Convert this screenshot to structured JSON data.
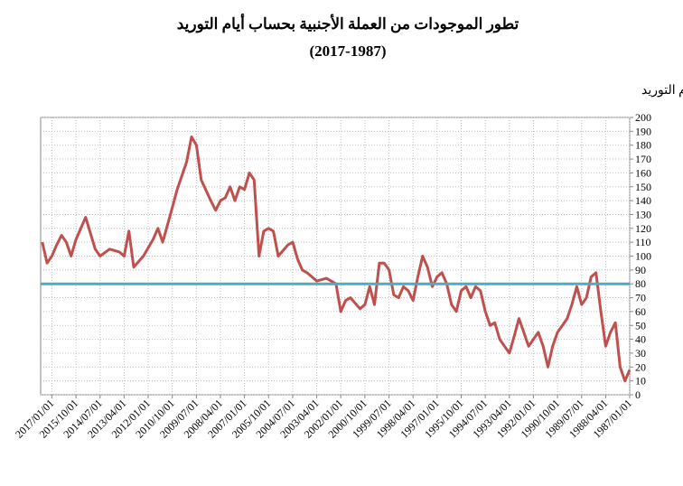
{
  "chart_data": {
    "type": "line",
    "title": "تطور الموجودات من العملة الأجنبية بحساب أيام التوريد",
    "subtitle": "(2017-1987)",
    "y_label": "أيام التوريد",
    "color": "#c0504d",
    "x_reversed": true,
    "y_axis_side": "right",
    "grid": true,
    "reference_line": {
      "value": 80,
      "color": "#4bacc6"
    },
    "xlim": [
      "1987/01/01",
      "2017/08/01"
    ],
    "xticks": [
      "2017/01/01",
      "2015/10/01",
      "2014/07/01",
      "2013/04/01",
      "2012/01/01",
      "2010/10/01",
      "2009/07/01",
      "2008/04/01",
      "2007/01/01",
      "2005/10/01",
      "2004/07/01",
      "2003/04/01",
      "2002/01/01",
      "2000/10/01",
      "1999/07/01",
      "1998/04/01",
      "1997/01/01",
      "1995/10/01",
      "1994/07/01",
      "1993/04/01",
      "1992/01/01",
      "1990/10/01",
      "1989/07/01",
      "1988/04/01",
      "1987/01/01"
    ],
    "ylim": [
      0,
      200
    ],
    "yticks": [
      0,
      10,
      20,
      30,
      40,
      50,
      60,
      70,
      80,
      90,
      100,
      110,
      120,
      130,
      140,
      150,
      160,
      170,
      180,
      190,
      200
    ],
    "x": [
      "2017/07/01",
      "2017/04/01",
      "2017/01/01",
      "2016/10/01",
      "2016/07/01",
      "2016/04/01",
      "2016/01/01",
      "2015/10/01",
      "2015/04/01",
      "2014/10/01",
      "2014/07/01",
      "2014/01/01",
      "2013/07/01",
      "2013/04/01",
      "2013/01/01",
      "2012/10/01",
      "2012/04/01",
      "2011/10/01",
      "2011/07/01",
      "2011/04/01",
      "2010/10/01",
      "2010/07/01",
      "2010/01/01",
      "2009/10/01",
      "2009/07/01",
      "2009/04/01",
      "2008/10/01",
      "2008/07/01",
      "2008/04/01",
      "2008/01/01",
      "2007/10/01",
      "2007/07/01",
      "2007/04/01",
      "2007/01/01",
      "2006/10/01",
      "2006/07/01",
      "2006/04/01",
      "2006/01/01",
      "2005/10/01",
      "2005/07/01",
      "2005/04/01",
      "2004/10/01",
      "2004/07/01",
      "2004/04/01",
      "2004/01/01",
      "2003/10/01",
      "2003/04/01",
      "2002/10/01",
      "2002/04/01",
      "2002/01/01",
      "2001/10/01",
      "2001/07/01",
      "2001/01/01",
      "2000/10/01",
      "2000/07/01",
      "2000/04/01",
      "2000/01/01",
      "1999/10/01",
      "1999/07/01",
      "1999/04/01",
      "1999/01/01",
      "1998/10/01",
      "1998/07/01",
      "1998/04/01",
      "1998/01/01",
      "1997/10/01",
      "1997/07/01",
      "1997/04/01",
      "1997/01/01",
      "1996/10/01",
      "1996/07/01",
      "1996/04/01",
      "1996/01/01",
      "1995/10/01",
      "1995/07/01",
      "1995/04/01",
      "1995/01/01",
      "1994/10/01",
      "1994/07/01",
      "1994/04/01",
      "1994/01/01",
      "1993/10/01",
      "1993/07/01",
      "1993/04/01",
      "1993/01/01",
      "1992/10/01",
      "1992/07/01",
      "1992/04/01",
      "1992/01/01",
      "1991/10/01",
      "1991/07/01",
      "1991/04/01",
      "1991/01/01",
      "1990/10/01",
      "1990/07/01",
      "1990/04/01",
      "1990/01/01",
      "1989/10/01",
      "1989/07/01",
      "1989/04/01",
      "1989/01/01",
      "1988/10/01",
      "1988/07/01",
      "1988/04/01",
      "1988/01/01",
      "1987/10/01",
      "1987/07/01",
      "1987/04/01",
      "1987/01/01"
    ],
    "values": [
      110,
      95,
      100,
      108,
      115,
      110,
      100,
      112,
      128,
      105,
      100,
      105,
      103,
      100,
      118,
      92,
      100,
      112,
      120,
      110,
      135,
      148,
      168,
      186,
      180,
      155,
      140,
      133,
      140,
      142,
      150,
      140,
      150,
      148,
      160,
      155,
      100,
      118,
      120,
      118,
      100,
      108,
      110,
      98,
      90,
      88,
      82,
      84,
      80,
      60,
      68,
      70,
      62,
      65,
      78,
      65,
      95,
      95,
      90,
      72,
      70,
      78,
      75,
      68,
      85,
      100,
      92,
      78,
      85,
      88,
      80,
      65,
      60,
      75,
      78,
      70,
      78,
      75,
      60,
      50,
      52,
      40,
      35,
      30,
      42,
      55,
      45,
      35,
      40,
      45,
      35,
      20,
      35,
      45,
      50,
      55,
      65,
      78,
      65,
      70,
      85,
      88,
      60,
      35,
      45,
      52,
      20,
      10,
      18
    ]
  }
}
